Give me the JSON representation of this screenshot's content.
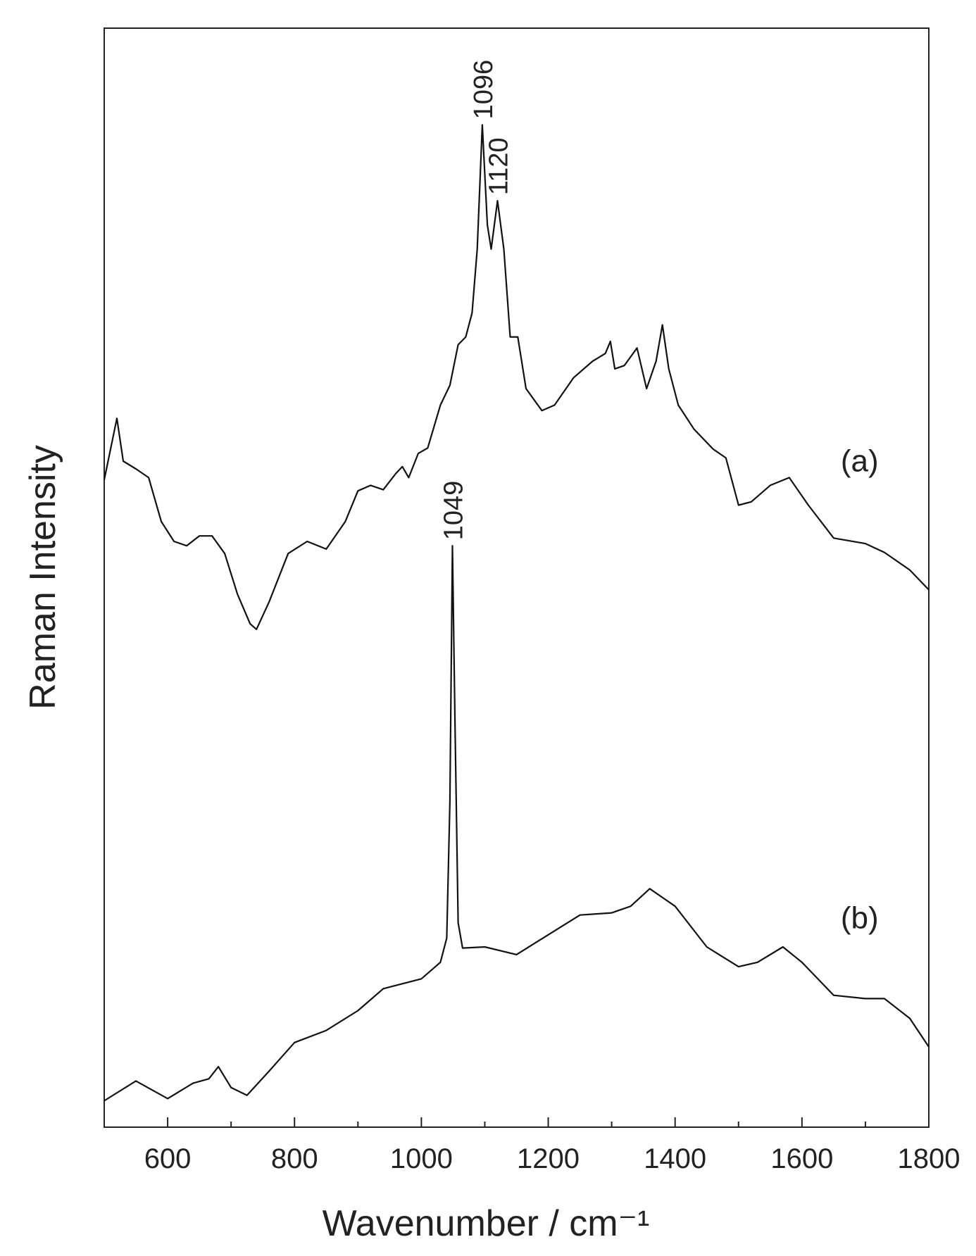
{
  "chart_data": {
    "type": "line",
    "xlabel": "Wavenumber / cm⁻¹",
    "ylabel": "Raman Intensity",
    "xlim": [
      500,
      1800
    ],
    "ylim": [
      0,
      100
    ],
    "xticks": [
      600,
      800,
      1000,
      1200,
      1400,
      1600,
      1800
    ],
    "xminorticks": [
      500,
      700,
      900,
      1100,
      1300,
      1500,
      1700
    ],
    "series": [
      {
        "name": "(a)",
        "color": "#111111",
        "x": [
          500,
          520,
          530,
          550,
          570,
          590,
          610,
          630,
          650,
          670,
          690,
          710,
          730,
          740,
          760,
          790,
          820,
          850,
          880,
          900,
          920,
          940,
          960,
          970,
          980,
          995,
          1010,
          1030,
          1045,
          1058,
          1070,
          1080,
          1088,
          1096,
          1104,
          1110,
          1120,
          1130,
          1140,
          1152,
          1165,
          1190,
          1210,
          1240,
          1270,
          1290,
          1298,
          1305,
          1320,
          1340,
          1355,
          1370,
          1380,
          1390,
          1405,
          1430,
          1460,
          1480,
          1500,
          1520,
          1550,
          1580,
          1610,
          1650,
          1700,
          1730,
          1770,
          1800
        ],
        "values": [
          58.9,
          64.5,
          60.6,
          59.9,
          59.1,
          55.1,
          53.3,
          52.9,
          53.8,
          53.8,
          52.2,
          48.5,
          45.8,
          45.3,
          47.8,
          52.2,
          53.3,
          52.6,
          55.1,
          57.9,
          58.4,
          58.0,
          59.5,
          60.1,
          59.1,
          61.3,
          61.8,
          65.7,
          67.5,
          71.2,
          71.9,
          74.1,
          79.9,
          91.2,
          82.1,
          79.9,
          84.3,
          79.9,
          71.9,
          71.9,
          67.2,
          65.2,
          65.7,
          68.2,
          69.7,
          70.4,
          71.5,
          69.0,
          69.3,
          70.9,
          67.2,
          69.7,
          73.0,
          69.0,
          65.7,
          63.5,
          61.7,
          60.9,
          56.6,
          56.9,
          58.4,
          59.1,
          56.6,
          53.6,
          53.1,
          52.3,
          50.7,
          48.9
        ]
      },
      {
        "name": "(b)",
        "color": "#111111",
        "x": [
          500,
          550,
          600,
          640,
          665,
          680,
          700,
          725,
          760,
          800,
          850,
          900,
          940,
          1000,
          1030,
          1040,
          1045,
          1049,
          1053,
          1058,
          1065,
          1100,
          1150,
          1200,
          1250,
          1300,
          1330,
          1360,
          1400,
          1450,
          1500,
          1530,
          1570,
          1600,
          1650,
          1700,
          1730,
          1770,
          1800
        ],
        "values": [
          2.4,
          4.2,
          2.6,
          4.0,
          4.4,
          5.5,
          3.6,
          2.9,
          5.1,
          7.7,
          8.8,
          10.6,
          12.6,
          13.5,
          15.0,
          17.2,
          29.6,
          52.9,
          36.9,
          18.6,
          16.3,
          16.4,
          15.7,
          17.5,
          19.3,
          19.5,
          20.1,
          21.7,
          20.1,
          16.4,
          14.6,
          15.0,
          16.4,
          15.0,
          12.0,
          11.7,
          11.7,
          9.9,
          7.3
        ]
      }
    ],
    "annotations": [
      {
        "text": "1096",
        "x": 1096,
        "y": 91.2
      },
      {
        "text": "1120",
        "x": 1120,
        "y": 84.3
      },
      {
        "text": "1049",
        "x": 1049,
        "y": 52.9
      }
    ]
  }
}
